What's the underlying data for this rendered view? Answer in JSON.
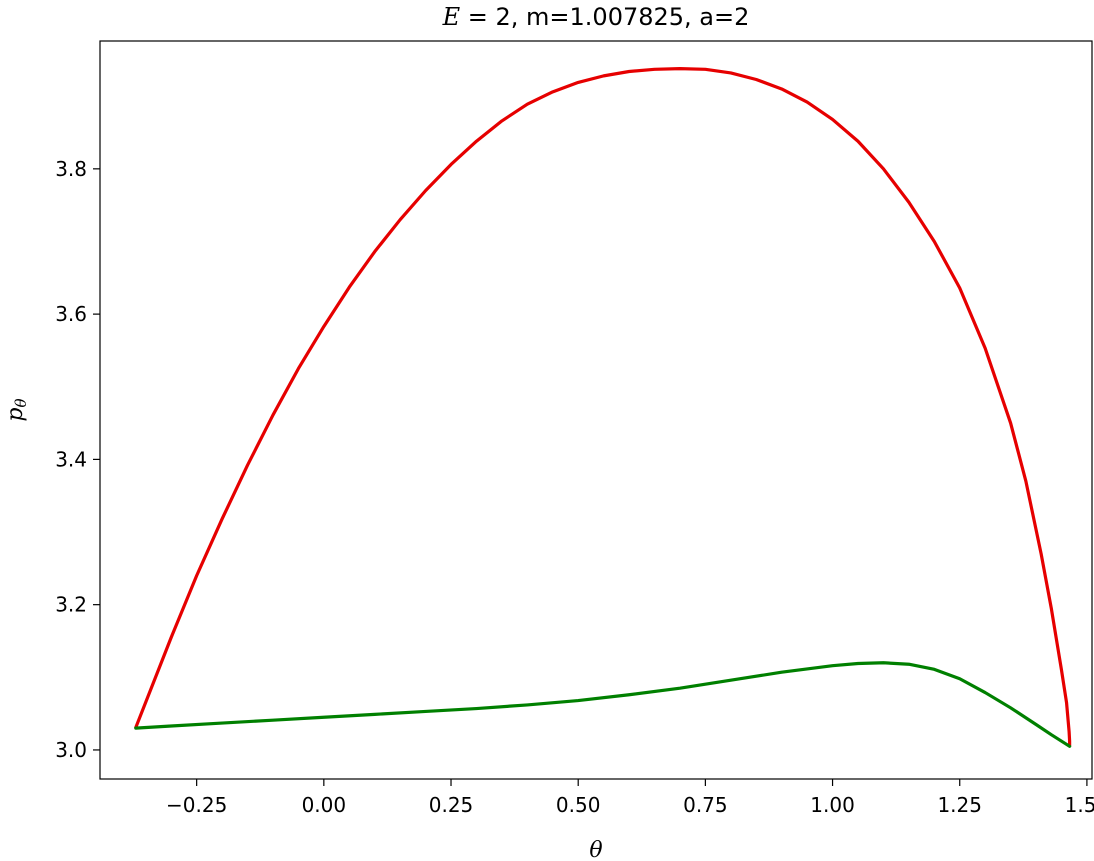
{
  "chart_data": {
    "type": "line",
    "title_prefix": "E",
    "title_rest": " = 2, m=1.007825, a=2",
    "xlabel": "θ",
    "ylabel_base": "p",
    "ylabel_sub": "θ",
    "xlim": [
      -0.44,
      1.51
    ],
    "ylim": [
      2.96,
      3.976
    ],
    "xticks": [
      -0.25,
      0.0,
      0.25,
      0.5,
      0.75,
      1.0,
      1.25,
      1.5
    ],
    "xtick_labels": [
      "−0.25",
      "0.00",
      "0.25",
      "0.50",
      "0.75",
      "1.00",
      "1.25",
      "1.50"
    ],
    "yticks": [
      3.0,
      3.2,
      3.4,
      3.6,
      3.8
    ],
    "ytick_labels": [
      "3.0",
      "3.2",
      "3.4",
      "3.6",
      "3.8"
    ],
    "grid": false,
    "series": [
      {
        "color": "#e60000",
        "x": [
          -0.3696,
          -0.3,
          -0.25,
          -0.2,
          -0.15,
          -0.1,
          -0.05,
          0.0,
          0.05,
          0.1,
          0.15,
          0.2,
          0.25,
          0.3,
          0.35,
          0.4,
          0.45,
          0.5,
          0.55,
          0.6,
          0.65,
          0.7,
          0.75,
          0.8,
          0.85,
          0.9,
          0.95,
          1.0,
          1.05,
          1.1,
          1.15,
          1.2,
          1.25,
          1.3,
          1.35,
          1.38,
          1.41,
          1.43,
          1.45,
          1.46,
          1.465,
          1.466,
          1.466
        ],
        "y": [
          3.031,
          3.155,
          3.24,
          3.318,
          3.392,
          3.461,
          3.525,
          3.583,
          3.637,
          3.686,
          3.73,
          3.77,
          3.806,
          3.838,
          3.866,
          3.889,
          3.906,
          3.919,
          3.928,
          3.934,
          3.937,
          3.938,
          3.937,
          3.932,
          3.923,
          3.91,
          3.892,
          3.868,
          3.838,
          3.8,
          3.754,
          3.7,
          3.636,
          3.553,
          3.45,
          3.37,
          3.27,
          3.195,
          3.11,
          3.065,
          3.025,
          3.012,
          3.006
        ]
      },
      {
        "color": "#008000",
        "x": [
          -0.3696,
          -0.3,
          -0.2,
          -0.1,
          0.0,
          0.1,
          0.2,
          0.3,
          0.4,
          0.5,
          0.6,
          0.7,
          0.8,
          0.9,
          1.0,
          1.05,
          1.1,
          1.15,
          1.2,
          1.25,
          1.3,
          1.35,
          1.4,
          1.43,
          1.466
        ],
        "y": [
          3.03,
          3.033,
          3.037,
          3.041,
          3.045,
          3.049,
          3.053,
          3.057,
          3.062,
          3.068,
          3.076,
          3.085,
          3.096,
          3.107,
          3.116,
          3.119,
          3.12,
          3.118,
          3.111,
          3.098,
          3.079,
          3.058,
          3.035,
          3.021,
          3.005
        ]
      }
    ]
  }
}
